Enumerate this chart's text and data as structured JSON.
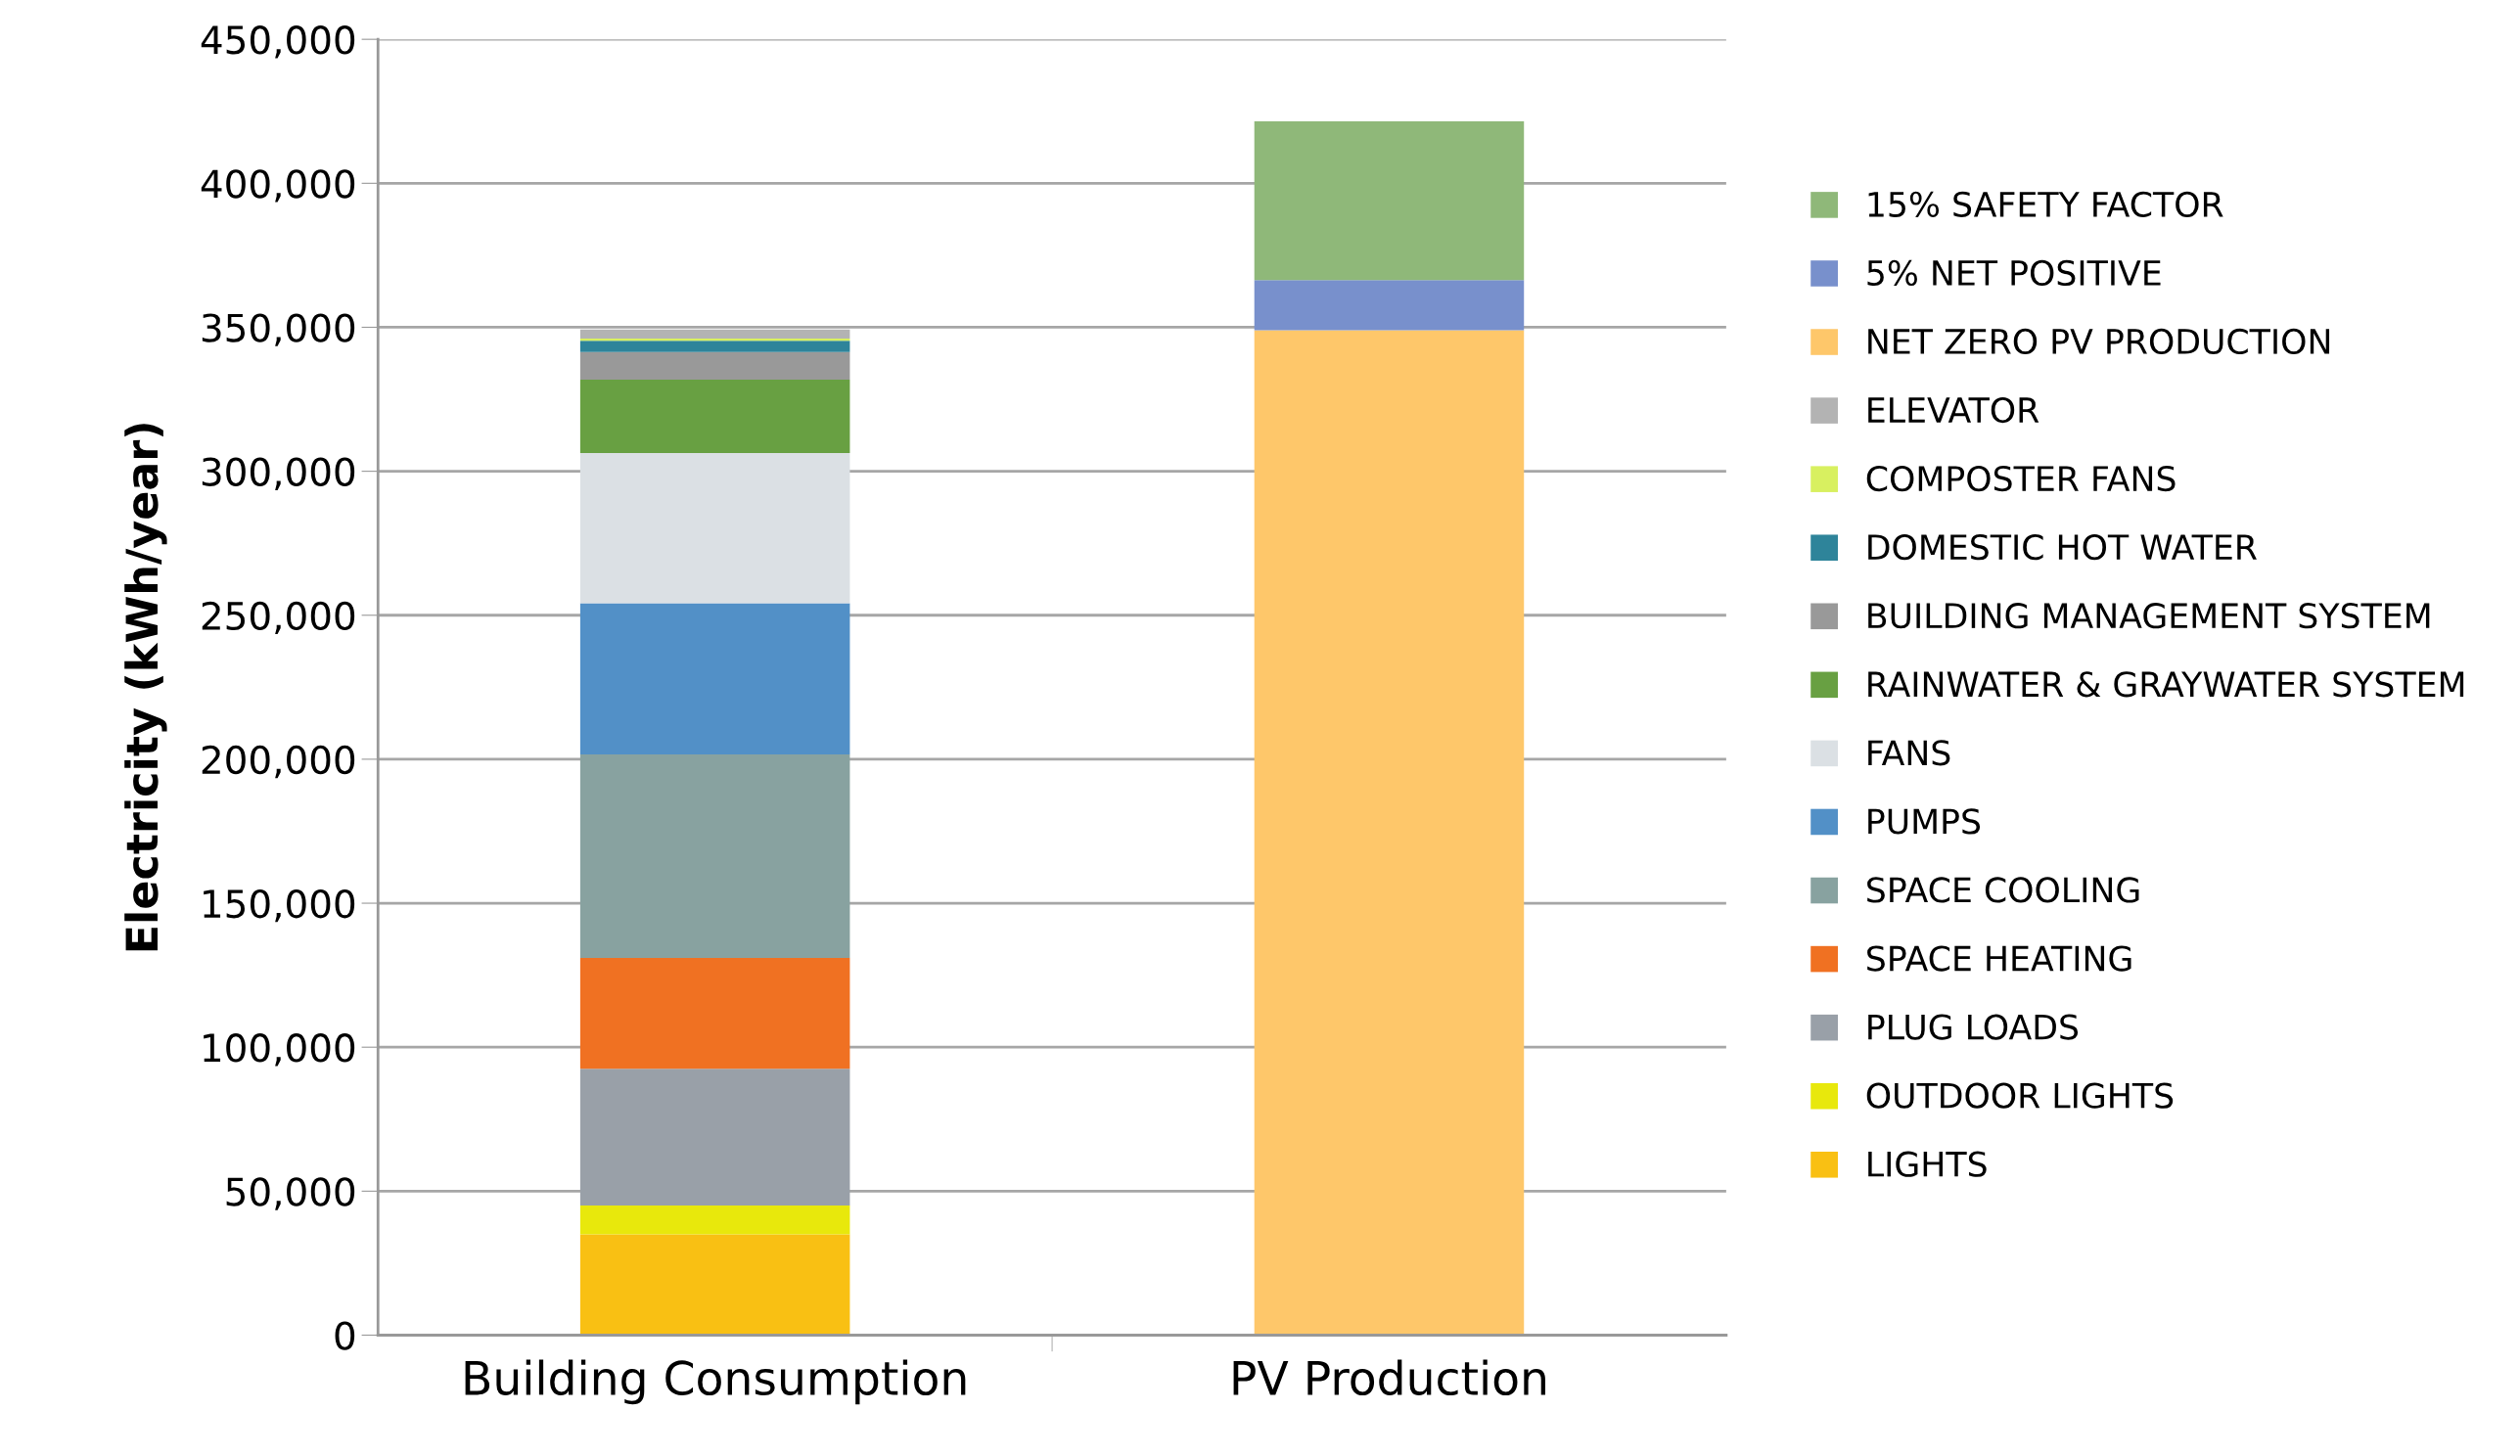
{
  "chart_data": {
    "type": "bar",
    "stacked": true,
    "ylabel": "Electricity (kWh/year)",
    "categories": [
      "Building Consumption",
      "PV Production"
    ],
    "ylim": [
      0,
      450000
    ],
    "yticks": [
      {
        "value": 0,
        "label": "0"
      },
      {
        "value": 50000,
        "label": "50,000"
      },
      {
        "value": 100000,
        "label": "100,000"
      },
      {
        "value": 150000,
        "label": "150,000"
      },
      {
        "value": 200000,
        "label": "200,000"
      },
      {
        "value": 250000,
        "label": "250,000"
      },
      {
        "value": 300000,
        "label": "300,000"
      },
      {
        "value": 350000,
        "label": "350,000"
      },
      {
        "value": 400000,
        "label": "400,000"
      },
      {
        "value": 450000,
        "label": "450,000"
      }
    ],
    "grid": "y",
    "legend": "right",
    "series": [
      {
        "name": "LIGHTS",
        "color": "#f9c013",
        "values": [
          35000,
          null
        ]
      },
      {
        "name": "OUTDOOR LIGHTS",
        "color": "#e8e80c",
        "values": [
          10000,
          null
        ]
      },
      {
        "name": "PLUG LOADS",
        "color": "#99a0a8",
        "values": [
          47500,
          null
        ]
      },
      {
        "name": "SPACE HEATING",
        "color": "#f07122",
        "values": [
          38500,
          null
        ]
      },
      {
        "name": "SPACE COOLING",
        "color": "#88a2a0",
        "values": [
          70700,
          null
        ]
      },
      {
        "name": "PUMPS",
        "color": "#5290c7",
        "values": [
          52500,
          null
        ]
      },
      {
        "name": "FANS",
        "color": "#dbe0e4",
        "values": [
          52100,
          null
        ]
      },
      {
        "name": "RAINWATER & GRAYWATER SYSTEM",
        "color": "#68a042",
        "values": [
          25500,
          null
        ]
      },
      {
        "name": "BUILDING MANAGEMENT SYSTEM",
        "color": "#999999",
        "values": [
          9600,
          null
        ]
      },
      {
        "name": "DOMESTIC HOT WATER",
        "color": "#2e849a",
        "values": [
          3900,
          null
        ]
      },
      {
        "name": "COMPOSTER FANS",
        "color": "#d8f060",
        "values": [
          800,
          null
        ]
      },
      {
        "name": "ELEVATOR",
        "color": "#b3b3b3",
        "values": [
          3100,
          null
        ]
      },
      {
        "name": "NET ZERO PV PRODUCTION",
        "color": "#fec76a",
        "values": [
          null,
          349000
        ]
      },
      {
        "name": "5% NET POSITIVE",
        "color": "#7890cc",
        "values": [
          null,
          17400
        ]
      },
      {
        "name": "15% SAFETY FACTOR",
        "color": "#8fb879",
        "values": [
          null,
          55100
        ]
      }
    ]
  }
}
